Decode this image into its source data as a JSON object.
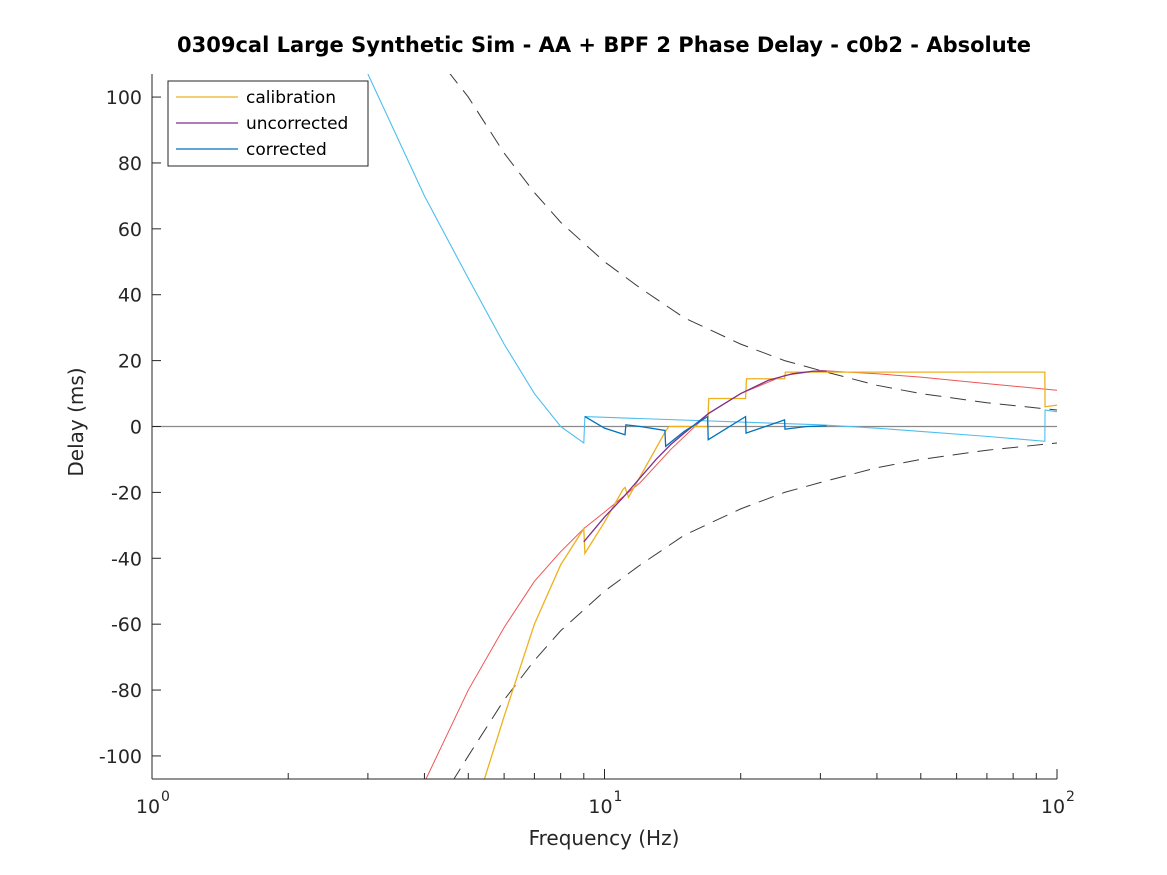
{
  "chart_data": {
    "type": "line",
    "title": "0309cal Large Synthetic Sim - AA + BPF 2 Phase Delay - c0b2 - Absolute",
    "xlabel": "Frequency (Hz)",
    "ylabel": "Delay (ms)",
    "xscale": "log",
    "xlim": [
      1,
      100
    ],
    "ylim": [
      -107,
      107
    ],
    "x_ticks": [
      {
        "value": 1,
        "base": "10",
        "exp": "0"
      },
      {
        "value": 10,
        "base": "10",
        "exp": "1"
      },
      {
        "value": 100,
        "base": "10",
        "exp": "2"
      }
    ],
    "y_ticks": [
      {
        "value": 100,
        "label": "100"
      },
      {
        "value": 80,
        "label": "80"
      },
      {
        "value": 60,
        "label": "60"
      },
      {
        "value": 40,
        "label": "40"
      },
      {
        "value": 20,
        "label": "20"
      },
      {
        "value": 0,
        "label": "0"
      },
      {
        "value": -20,
        "label": "-20"
      },
      {
        "value": -40,
        "label": "-40"
      },
      {
        "value": -60,
        "label": "-60"
      },
      {
        "value": -80,
        "label": "-80"
      },
      {
        "value": -100,
        "label": "-100"
      }
    ],
    "legend_position": "top-left",
    "legend": [
      {
        "label": "calibration",
        "color": "#EDB120"
      },
      {
        "label": "uncorrected",
        "color": "#7E2F8E"
      },
      {
        "label": "corrected",
        "color": "#0072BD"
      }
    ],
    "series": [
      {
        "name": "calibration",
        "color": "#EDB120",
        "x": [
          5.4,
          6,
          7,
          8,
          9,
          9.05,
          10,
          11,
          11.1,
          11.3,
          13.7,
          13.9,
          16.9,
          17,
          20.5,
          20.6,
          25,
          25.1,
          94,
          94.1,
          100
        ],
        "y": [
          -108,
          -88,
          -60,
          -42,
          -31,
          -38.5,
          -29,
          -19,
          -18.5,
          -21.5,
          -1,
          0,
          0,
          8.5,
          8.5,
          14.5,
          14.5,
          16.5,
          16.5,
          6,
          6.5
        ]
      },
      {
        "name": "uncorrected",
        "color": "#7E2F8E",
        "x": [
          9,
          10,
          11,
          12,
          13,
          14,
          15,
          17,
          20,
          23,
          26,
          29,
          31
        ],
        "y": [
          -35,
          -27.5,
          -21.5,
          -15.5,
          -10,
          -5.5,
          -2,
          4,
          10,
          14,
          16,
          16.8,
          16.8
        ]
      },
      {
        "name": "corrected",
        "color": "#0072BD",
        "x": [
          9.05,
          10,
          11.1,
          11.15,
          12,
          13.6,
          13.65,
          15,
          16.9,
          16.95,
          20.5,
          20.55,
          25,
          25.05,
          28,
          31
        ],
        "y": [
          3,
          -0.5,
          -2.5,
          0.5,
          0,
          -1.2,
          -6,
          -1.5,
          3,
          -4,
          3,
          -2,
          2,
          -0.8,
          0,
          0.2
        ]
      }
    ],
    "extra_lines": {
      "model_low_color": "#EE5555",
      "model_low": {
        "x": [
          4,
          5,
          6,
          7,
          8,
          9,
          10,
          12,
          14,
          17,
          20,
          25,
          30,
          40,
          50,
          70,
          100
        ],
        "y": [
          -108,
          -80,
          -61,
          -47,
          -38,
          -31,
          -26,
          -17,
          -7,
          4,
          10,
          15.5,
          17,
          16,
          15,
          13,
          11
        ]
      },
      "model_high_color": "#4DBEEE",
      "model_high": {
        "x": [
          3,
          4,
          5,
          6,
          7,
          8,
          9,
          9.05,
          30,
          40,
          50,
          70,
          94,
          94.1,
          100
        ],
        "y": [
          107,
          70,
          45,
          25,
          10,
          0,
          -5,
          3,
          0.5,
          -0.5,
          -1.5,
          -3,
          -4.5,
          5,
          4.5
        ]
      },
      "bound_color": "#3A3A3A",
      "bound_upper": {
        "x": [
          4.5,
          5,
          6,
          7,
          8,
          10,
          12,
          15,
          20,
          25,
          30,
          40,
          50,
          70,
          100
        ],
        "y": [
          108,
          100,
          83,
          71,
          62,
          50,
          42,
          33,
          25,
          20,
          17,
          12.5,
          10,
          7.2,
          5
        ]
      },
      "bound_lower": {
        "x": [
          4.6,
          5,
          6,
          7,
          8,
          10,
          12,
          15,
          20,
          25,
          30,
          40,
          50,
          70,
          100
        ],
        "y": [
          -108,
          -100,
          -83,
          -71,
          -62,
          -50,
          -42,
          -33,
          -25,
          -20,
          -17,
          -12.5,
          -10,
          -7.2,
          -5
        ]
      },
      "zero_color": "#8A8A8A"
    }
  }
}
